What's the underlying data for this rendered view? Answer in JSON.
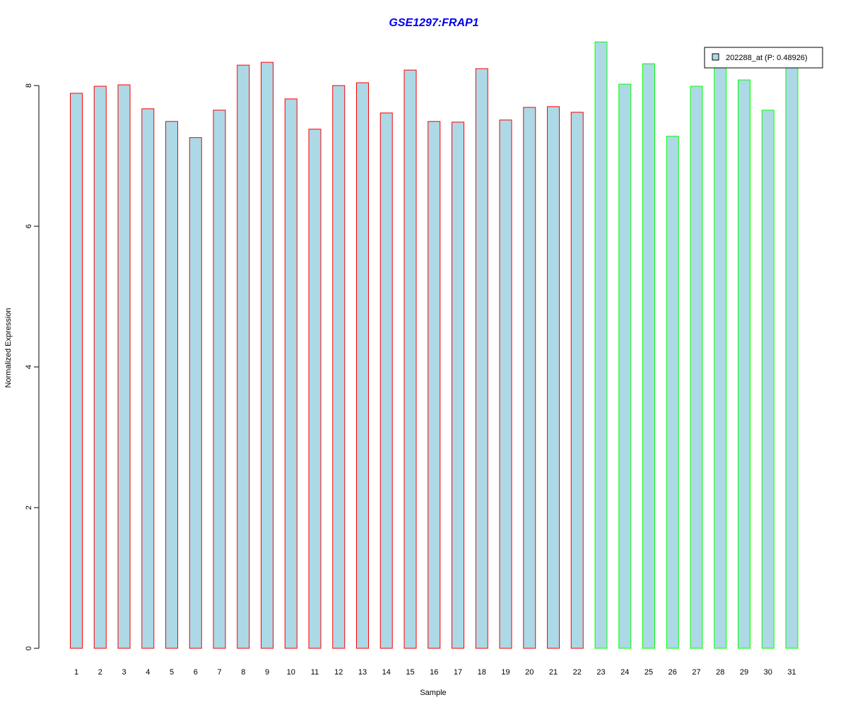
{
  "chart_data": {
    "type": "bar",
    "title": "GSE1297:FRAP1",
    "xlabel": "Sample",
    "ylabel": "Normalized Expression",
    "categories": [
      "1",
      "2",
      "3",
      "4",
      "5",
      "6",
      "7",
      "8",
      "9",
      "10",
      "11",
      "12",
      "13",
      "14",
      "15",
      "16",
      "17",
      "18",
      "19",
      "20",
      "21",
      "22",
      "23",
      "24",
      "25",
      "26",
      "27",
      "28",
      "29",
      "30",
      "31"
    ],
    "values": [
      7.89,
      7.99,
      8.01,
      7.67,
      7.49,
      7.26,
      7.65,
      8.29,
      8.33,
      7.81,
      7.38,
      8.0,
      8.04,
      7.61,
      8.22,
      7.49,
      7.48,
      8.24,
      7.51,
      7.69,
      7.7,
      7.62,
      8.62,
      8.02,
      8.31,
      7.28,
      7.99,
      8.3,
      8.08,
      7.65,
      8.32
    ],
    "groups": [
      "red",
      "red",
      "red",
      "red",
      "red",
      "red",
      "red",
      "red",
      "red",
      "red",
      "red",
      "red",
      "red",
      "red",
      "red",
      "red",
      "red",
      "red",
      "red",
      "red",
      "red",
      "red",
      "green",
      "green",
      "green",
      "green",
      "green",
      "green",
      "green",
      "green",
      "green"
    ],
    "ylim": [
      0,
      8.62
    ],
    "yticks": [
      0,
      2,
      4,
      6,
      8
    ],
    "legend": {
      "label": "202288_at (P: 0.48926)",
      "position": "top-right"
    },
    "colors": {
      "bar_fill": "#add8e6",
      "group_red": "#ff0000",
      "group_green": "#00ff00",
      "title": "#0000ee"
    },
    "grid": false
  }
}
